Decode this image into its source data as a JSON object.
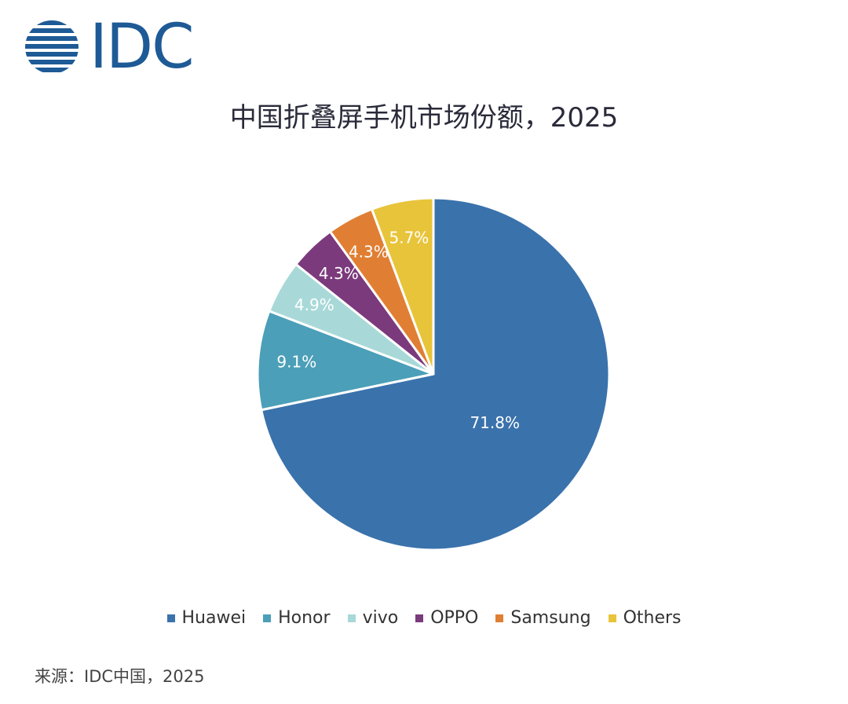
{
  "logo": {
    "text": "IDC",
    "color": "#1e5a96"
  },
  "chart_data": {
    "type": "pie",
    "title": "中国折叠屏手机市场份额，2025",
    "slices": [
      {
        "label": "Huawei",
        "value": 71.8,
        "display": "71.8%",
        "color": "#3a72ac",
        "label_color": "#ffffff"
      },
      {
        "label": "Honor",
        "value": 9.1,
        "display": "9.1%",
        "color": "#4b9fb8",
        "label_color": "#ffffff"
      },
      {
        "label": "vivo",
        "value": 4.9,
        "display": "4.9%",
        "color": "#a8d9d8",
        "label_color": "#ffffff"
      },
      {
        "label": "OPPO",
        "value": 4.3,
        "display": "4.3%",
        "color": "#7b3a7c",
        "label_color": "#ffffff"
      },
      {
        "label": "Samsung",
        "value": 4.3,
        "display": "4.3%",
        "color": "#e07f33",
        "label_color": "#ffffff"
      },
      {
        "label": "Others",
        "value": 5.7,
        "display": "5.7%",
        "color": "#e8c43a",
        "label_color": "#ffffff"
      }
    ],
    "legend_position": "bottom"
  },
  "source": "来源：IDC中国，2025"
}
